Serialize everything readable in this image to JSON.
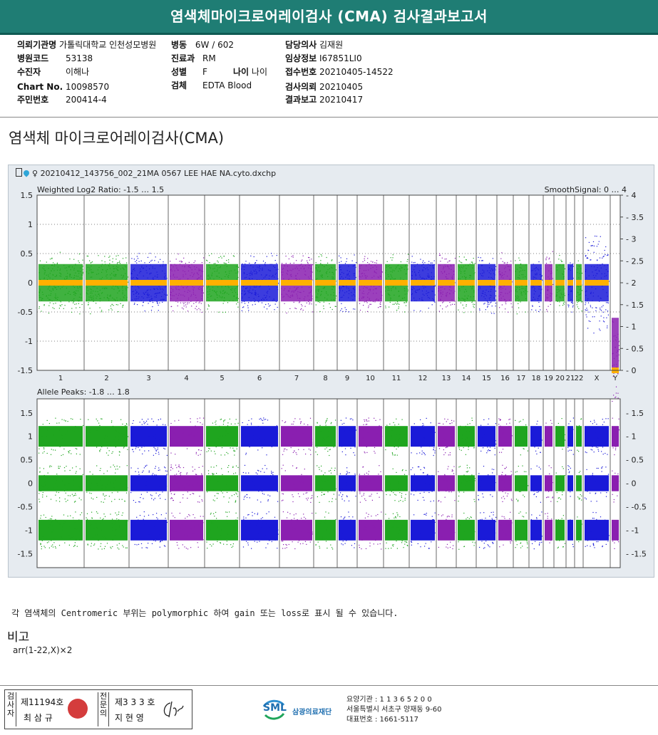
{
  "report": {
    "title": "염색체마이크로어레이검사 (CMA) 검사결과보고서"
  },
  "info": {
    "institution_label": "의뢰기관명",
    "institution": "가톨릭대학교 인천성모병원",
    "ward_label": "병동",
    "ward": "6W / 602",
    "doctor_label": "담당의사",
    "doctor": "김재원",
    "hospital_code_label": "병원코드",
    "hospital_code": "53138",
    "dept_label": "진료과",
    "dept": "RM",
    "clinical_label": "임상정보",
    "clinical": "I67851LI0",
    "patient_label": "수진자",
    "patient": "이해나",
    "sex_label": "성별",
    "sex": "F",
    "age_label": "나이",
    "age": "나이",
    "accession_label": "접수번호",
    "accession": "20210405-14522",
    "chart_label": "Chart No.",
    "chart": "10098570",
    "specimen_label": "검체",
    "specimen": "EDTA Blood",
    "request_date_label": "검사의뢰",
    "request_date": "20210405",
    "id_label": "주민번호",
    "id": "200414-4",
    "report_date_label": "결과보고",
    "report_date": "20210417"
  },
  "section_title": "염색체 마이크로어레이검사(CMA)",
  "panel": {
    "file_name": "20210412_143756_002_21MA 0567 LEE HAE NA.cyto.dxchp",
    "top_title": "Weighted Log2 Ratio: -1.5 … 1.5",
    "top_right_title": "SmoothSignal: 0 … 4",
    "bottom_title": "Allele Peaks: -1.8 … 1.8"
  },
  "chart_data": [
    {
      "type": "scatter",
      "title": "Weighted Log2 Ratio: -1.5 … 1.5",
      "ylim": [
        -1.5,
        1.5
      ],
      "y_ticks": [
        "1.5",
        "1",
        "0.5",
        "0",
        "-0.5",
        "-1",
        "-1.5"
      ],
      "y2lim": [
        0,
        4
      ],
      "y2_ticks": [
        "4",
        "3.5",
        "3",
        "2.5",
        "2",
        "1.5",
        "1",
        "0.5",
        "0"
      ],
      "categories": [
        "1",
        "2",
        "3",
        "4",
        "5",
        "6",
        "7",
        "8",
        "9",
        "10",
        "11",
        "12",
        "13",
        "14",
        "15",
        "16",
        "17",
        "18",
        "19",
        "20",
        "21",
        "22",
        "X",
        "Y"
      ],
      "series": [
        {
          "name": "",
          "values": [
            0,
            0,
            0,
            0,
            0,
            0,
            0,
            0,
            0,
            0,
            0,
            0,
            0,
            0,
            0,
            0,
            0,
            0,
            0,
            0,
            0,
            0,
            0,
            -1.4
          ]
        },
        {
          "name": "SmoothSignal",
          "values": [
            2,
            2,
            2,
            2,
            2,
            2,
            2,
            2,
            2,
            2,
            2,
            2,
            2,
            2,
            2,
            2,
            2,
            2,
            2,
            2,
            2,
            2,
            2,
            0
          ]
        }
      ],
      "grid": true
    },
    {
      "type": "scatter",
      "title": "Allele Peaks: -1.8 … 1.8",
      "ylim": [
        -1.8,
        1.8
      ],
      "y_ticks": [
        "1.5",
        "1",
        "0.5",
        "0",
        "-0.5",
        "-1",
        "-1.5"
      ],
      "categories": [
        "1",
        "2",
        "3",
        "4",
        "5",
        "6",
        "7",
        "8",
        "9",
        "10",
        "11",
        "12",
        "13",
        "14",
        "15",
        "16",
        "17",
        "18",
        "19",
        "20",
        "21",
        "22",
        "X",
        "Y"
      ],
      "bands": [
        1.0,
        0.0,
        -1.0
      ],
      "grid": false
    }
  ],
  "colors": {
    "green": "#1fa51f",
    "blue": "#1a1ad8",
    "purple": "#8a1fb0",
    "orange": "#ffb000",
    "banner": "#1f7d74"
  },
  "note": "각 염색체의 Centromeric 부위는 polymorphic 하여 gain 또는 loss로 표시 될 수 있습니다.",
  "remark": {
    "heading": "비고",
    "value": "arr(1-22,X)×2"
  },
  "signature": {
    "left_vertical": "검사자",
    "left_no": "제11194호",
    "left_name": "최 삼 규",
    "right_vertical": "전문의",
    "right_no": "제3 3 3 호",
    "right_name": "지 현 영"
  },
  "footer": {
    "logo_text": "SML",
    "org_name": "삼광의료재단",
    "line1": "요양기관 : 1 1 3 6 5 2 0 0",
    "line2": "서울특별시 서초구 양재동 9-60",
    "line3": "대표번호 : 1661-5117"
  }
}
